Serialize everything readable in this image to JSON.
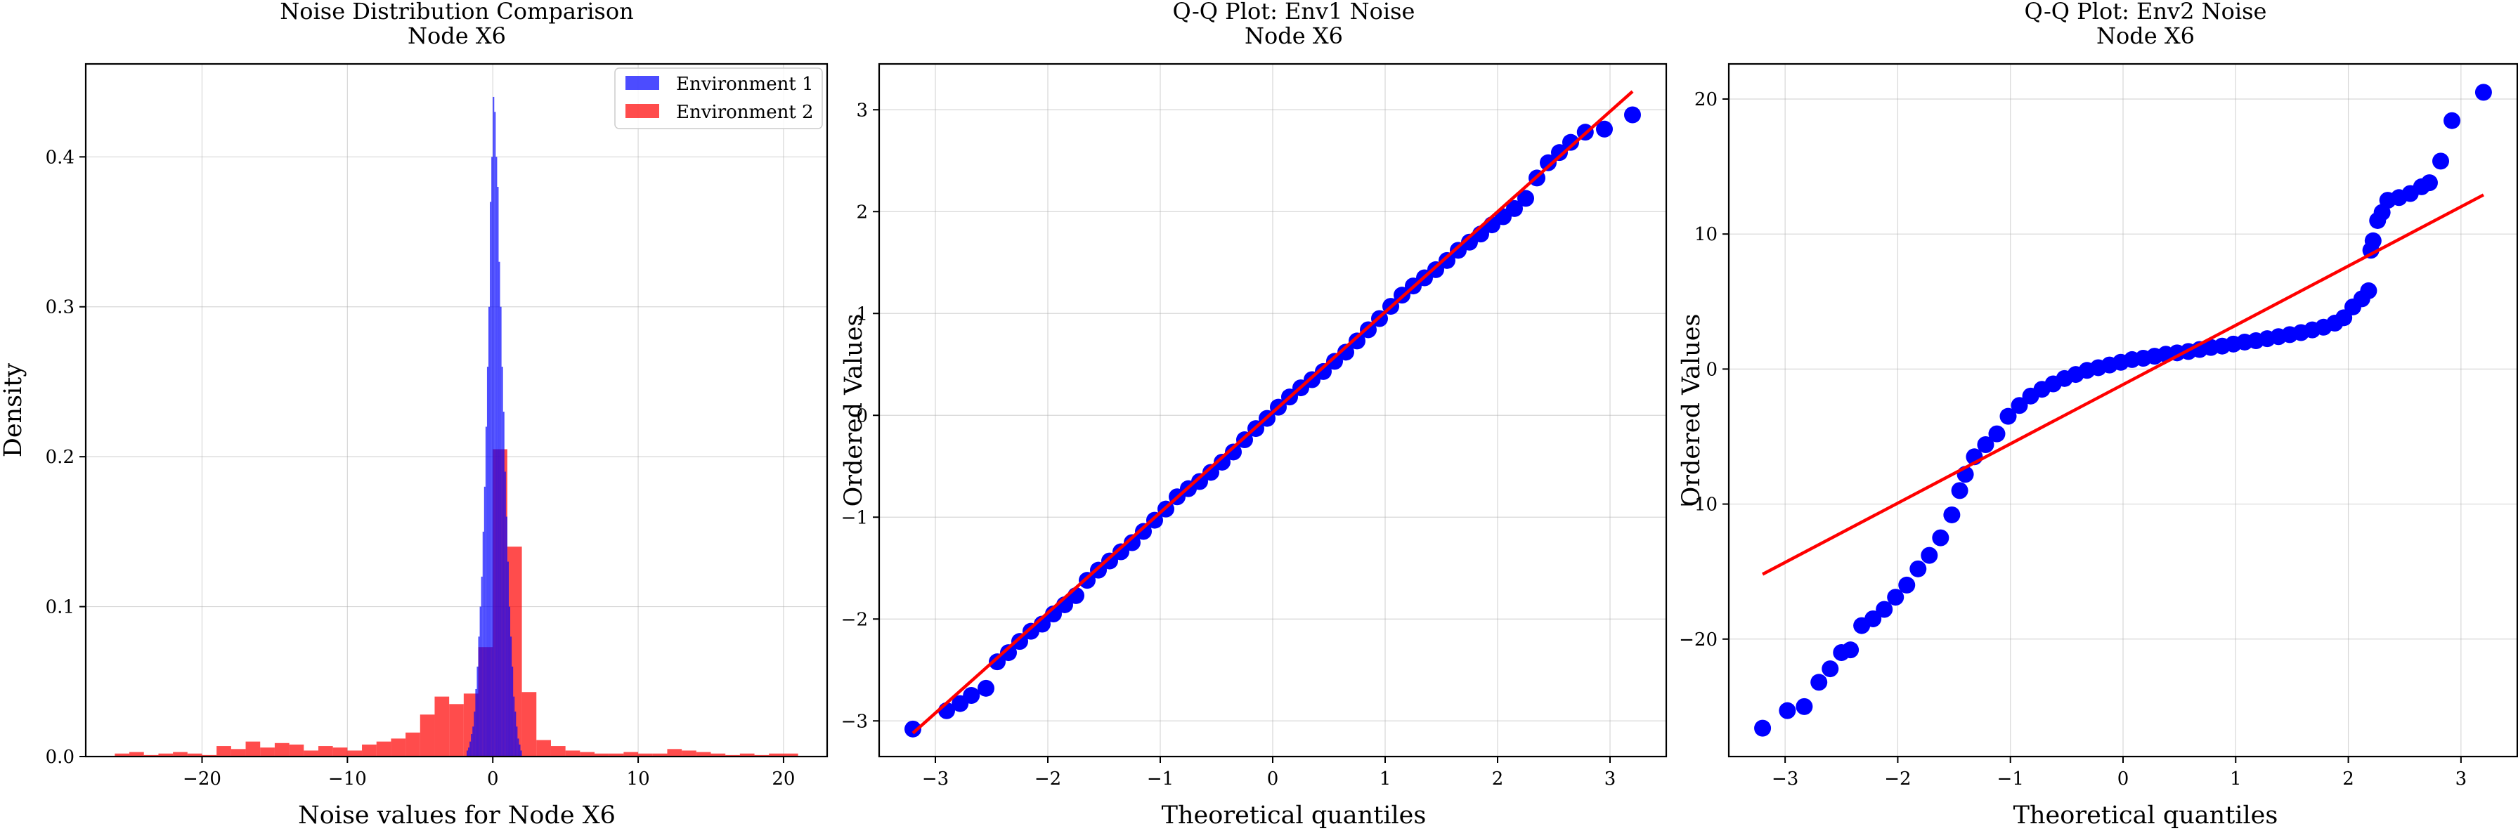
{
  "chart_data": [
    {
      "type": "bar",
      "title": "Noise Distribution Comparison",
      "subtitle": "Node X6",
      "xlabel": "Noise values for Node X6",
      "ylabel": "Density",
      "xlim": [
        -28,
        23
      ],
      "ylim": [
        0,
        0.462
      ],
      "xticks": [
        -20,
        -10,
        0,
        10,
        20
      ],
      "yticks": [
        0.0,
        0.1,
        0.2,
        0.3,
        0.4
      ],
      "grid": true,
      "legend": "top-right",
      "series": [
        {
          "name": "Environment 2",
          "color": "#ff0000",
          "alpha": 0.7,
          "bin_width": 1.0,
          "bins": [
            [
              -26,
              0.002
            ],
            [
              -25,
              0.003
            ],
            [
              -24,
              0.001
            ],
            [
              -23,
              0.002
            ],
            [
              -22,
              0.003
            ],
            [
              -21,
              0.002
            ],
            [
              -20,
              0.001
            ],
            [
              -19,
              0.007
            ],
            [
              -18,
              0.005
            ],
            [
              -17,
              0.01
            ],
            [
              -16,
              0.006
            ],
            [
              -15,
              0.009
            ],
            [
              -14,
              0.008
            ],
            [
              -13,
              0.004
            ],
            [
              -12,
              0.007
            ],
            [
              -11,
              0.006
            ],
            [
              -10,
              0.004
            ],
            [
              -9,
              0.008
            ],
            [
              -8,
              0.01
            ],
            [
              -7,
              0.012
            ],
            [
              -6,
              0.016
            ],
            [
              -5,
              0.028
            ],
            [
              -4,
              0.04
            ],
            [
              -3,
              0.035
            ],
            [
              -2,
              0.042
            ],
            [
              -1,
              0.073
            ],
            [
              0,
              0.205
            ],
            [
              1,
              0.14
            ],
            [
              2,
              0.043
            ],
            [
              3,
              0.011
            ],
            [
              4,
              0.007
            ],
            [
              5,
              0.004
            ],
            [
              6,
              0.003
            ],
            [
              7,
              0.002
            ],
            [
              8,
              0.002
            ],
            [
              9,
              0.003
            ],
            [
              10,
              0.002
            ],
            [
              11,
              0.002
            ],
            [
              12,
              0.005
            ],
            [
              13,
              0.004
            ],
            [
              14,
              0.003
            ],
            [
              15,
              0.002
            ],
            [
              16,
              0.001
            ],
            [
              17,
              0.002
            ],
            [
              18,
              0.001
            ],
            [
              19,
              0.002
            ],
            [
              20,
              0.002
            ]
          ]
        },
        {
          "name": "Environment 1",
          "color": "#0000ff",
          "alpha": 0.7,
          "bin_width": 0.1,
          "bins": [
            [
              -1.8,
              0.004
            ],
            [
              -1.7,
              0.006
            ],
            [
              -1.6,
              0.01
            ],
            [
              -1.5,
              0.015
            ],
            [
              -1.4,
              0.02
            ],
            [
              -1.3,
              0.03
            ],
            [
              -1.2,
              0.045
            ],
            [
              -1.1,
              0.06
            ],
            [
              -1.0,
              0.08
            ],
            [
              -0.9,
              0.1
            ],
            [
              -0.8,
              0.12
            ],
            [
              -0.7,
              0.15
            ],
            [
              -0.6,
              0.18
            ],
            [
              -0.5,
              0.22
            ],
            [
              -0.4,
              0.26
            ],
            [
              -0.3,
              0.3
            ],
            [
              -0.2,
              0.37
            ],
            [
              -0.1,
              0.4
            ],
            [
              0.0,
              0.44
            ],
            [
              0.1,
              0.43
            ],
            [
              0.2,
              0.4
            ],
            [
              0.3,
              0.38
            ],
            [
              0.4,
              0.33
            ],
            [
              0.5,
              0.3
            ],
            [
              0.6,
              0.26
            ],
            [
              0.7,
              0.23
            ],
            [
              0.8,
              0.19
            ],
            [
              0.9,
              0.16
            ],
            [
              1.0,
              0.13
            ],
            [
              1.1,
              0.1
            ],
            [
              1.2,
              0.08
            ],
            [
              1.3,
              0.06
            ],
            [
              1.4,
              0.04
            ],
            [
              1.5,
              0.03
            ],
            [
              1.6,
              0.02
            ],
            [
              1.7,
              0.012
            ],
            [
              1.8,
              0.008
            ],
            [
              1.9,
              0.004
            ]
          ]
        }
      ]
    },
    {
      "type": "scatter",
      "title": "Q-Q Plot: Env1 Noise",
      "subtitle": "Node X6",
      "xlabel": "Theoretical quantiles",
      "ylabel": "Ordered Values",
      "xlim": [
        -3.5,
        3.5
      ],
      "ylim": [
        -3.35,
        3.45
      ],
      "xticks": [
        -3,
        -2,
        -1,
        0,
        1,
        2,
        3
      ],
      "yticks": [
        -3,
        -2,
        -1,
        0,
        1,
        2,
        3
      ],
      "grid": true,
      "marker_color": "#0000ff",
      "line_color": "#ff0000",
      "fit_line": {
        "x": [
          -3.2,
          3.2
        ],
        "y": [
          -3.12,
          3.18
        ]
      },
      "points": [
        [
          -3.2,
          -3.08
        ],
        [
          -2.9,
          -2.9
        ],
        [
          -2.78,
          -2.83
        ],
        [
          -2.68,
          -2.75
        ],
        [
          -2.55,
          -2.68
        ],
        [
          -2.45,
          -2.42
        ],
        [
          -2.35,
          -2.33
        ],
        [
          -2.25,
          -2.22
        ],
        [
          -2.15,
          -2.12
        ],
        [
          -2.05,
          -2.05
        ],
        [
          -1.95,
          -1.95
        ],
        [
          -1.85,
          -1.86
        ],
        [
          -1.75,
          -1.77
        ],
        [
          -1.65,
          -1.62
        ],
        [
          -1.55,
          -1.52
        ],
        [
          -1.45,
          -1.43
        ],
        [
          -1.35,
          -1.34
        ],
        [
          -1.25,
          -1.25
        ],
        [
          -1.15,
          -1.14
        ],
        [
          -1.05,
          -1.03
        ],
        [
          -0.95,
          -0.92
        ],
        [
          -0.85,
          -0.8
        ],
        [
          -0.75,
          -0.72
        ],
        [
          -0.65,
          -0.65
        ],
        [
          -0.55,
          -0.56
        ],
        [
          -0.45,
          -0.46
        ],
        [
          -0.35,
          -0.36
        ],
        [
          -0.25,
          -0.24
        ],
        [
          -0.15,
          -0.13
        ],
        [
          -0.05,
          -0.03
        ],
        [
          0.05,
          0.08
        ],
        [
          0.15,
          0.18
        ],
        [
          0.25,
          0.27
        ],
        [
          0.35,
          0.35
        ],
        [
          0.45,
          0.43
        ],
        [
          0.55,
          0.53
        ],
        [
          0.65,
          0.62
        ],
        [
          0.75,
          0.73
        ],
        [
          0.85,
          0.84
        ],
        [
          0.95,
          0.95
        ],
        [
          1.05,
          1.07
        ],
        [
          1.15,
          1.18
        ],
        [
          1.25,
          1.27
        ],
        [
          1.35,
          1.35
        ],
        [
          1.45,
          1.43
        ],
        [
          1.55,
          1.52
        ],
        [
          1.65,
          1.62
        ],
        [
          1.75,
          1.7
        ],
        [
          1.85,
          1.78
        ],
        [
          1.95,
          1.87
        ],
        [
          2.05,
          1.95
        ],
        [
          2.15,
          2.03
        ],
        [
          2.25,
          2.13
        ],
        [
          2.35,
          2.33
        ],
        [
          2.45,
          2.48
        ],
        [
          2.55,
          2.58
        ],
        [
          2.65,
          2.68
        ],
        [
          2.78,
          2.78
        ],
        [
          2.95,
          2.81
        ],
        [
          3.2,
          2.95
        ]
      ]
    },
    {
      "type": "scatter",
      "title": "Q-Q Plot: Env2 Noise",
      "subtitle": "Node X6",
      "xlabel": "Theoretical quantiles",
      "ylabel": "Ordered Values",
      "xlim": [
        -3.5,
        3.5
      ],
      "ylim": [
        -28.7,
        22.6
      ],
      "xticks": [
        -3,
        -2,
        -1,
        0,
        1,
        2,
        3
      ],
      "yticks": [
        -20,
        -10,
        0,
        10,
        20
      ],
      "grid": true,
      "marker_color": "#0000ff",
      "line_color": "#ff0000",
      "fit_line": {
        "x": [
          -3.2,
          3.2
        ],
        "y": [
          -15.2,
          12.9
        ]
      },
      "points": [
        [
          -3.2,
          -26.6
        ],
        [
          -2.98,
          -25.3
        ],
        [
          -2.83,
          -25.0
        ],
        [
          -2.7,
          -23.2
        ],
        [
          -2.6,
          -22.2
        ],
        [
          -2.5,
          -21.0
        ],
        [
          -2.42,
          -20.8
        ],
        [
          -2.32,
          -19.0
        ],
        [
          -2.22,
          -18.5
        ],
        [
          -2.12,
          -17.8
        ],
        [
          -2.02,
          -16.9
        ],
        [
          -1.92,
          -16.0
        ],
        [
          -1.82,
          -14.8
        ],
        [
          -1.72,
          -13.8
        ],
        [
          -1.62,
          -12.5
        ],
        [
          -1.52,
          -10.8
        ],
        [
          -1.45,
          -9.0
        ],
        [
          -1.4,
          -7.8
        ],
        [
          -1.32,
          -6.5
        ],
        [
          -1.22,
          -5.6
        ],
        [
          -1.12,
          -4.8
        ],
        [
          -1.02,
          -3.5
        ],
        [
          -0.92,
          -2.7
        ],
        [
          -0.82,
          -2.0
        ],
        [
          -0.72,
          -1.5
        ],
        [
          -0.62,
          -1.1
        ],
        [
          -0.52,
          -0.7
        ],
        [
          -0.42,
          -0.4
        ],
        [
          -0.32,
          -0.1
        ],
        [
          -0.22,
          0.1
        ],
        [
          -0.12,
          0.3
        ],
        [
          -0.02,
          0.5
        ],
        [
          0.08,
          0.7
        ],
        [
          0.18,
          0.8
        ],
        [
          0.28,
          0.95
        ],
        [
          0.38,
          1.1
        ],
        [
          0.48,
          1.2
        ],
        [
          0.58,
          1.3
        ],
        [
          0.68,
          1.45
        ],
        [
          0.78,
          1.6
        ],
        [
          0.88,
          1.7
        ],
        [
          0.98,
          1.85
        ],
        [
          1.08,
          2.0
        ],
        [
          1.18,
          2.1
        ],
        [
          1.28,
          2.25
        ],
        [
          1.38,
          2.4
        ],
        [
          1.48,
          2.55
        ],
        [
          1.58,
          2.7
        ],
        [
          1.68,
          2.9
        ],
        [
          1.78,
          3.1
        ],
        [
          1.88,
          3.4
        ],
        [
          1.96,
          3.8
        ],
        [
          2.04,
          4.6
        ],
        [
          2.12,
          5.2
        ],
        [
          2.18,
          5.8
        ],
        [
          2.2,
          8.8
        ],
        [
          2.22,
          9.5
        ],
        [
          2.26,
          11.0
        ],
        [
          2.3,
          11.6
        ],
        [
          2.35,
          12.5
        ],
        [
          2.45,
          12.7
        ],
        [
          2.55,
          13.0
        ],
        [
          2.65,
          13.5
        ],
        [
          2.72,
          13.8
        ],
        [
          2.82,
          15.4
        ],
        [
          2.92,
          18.4
        ],
        [
          3.2,
          20.5
        ]
      ]
    }
  ]
}
